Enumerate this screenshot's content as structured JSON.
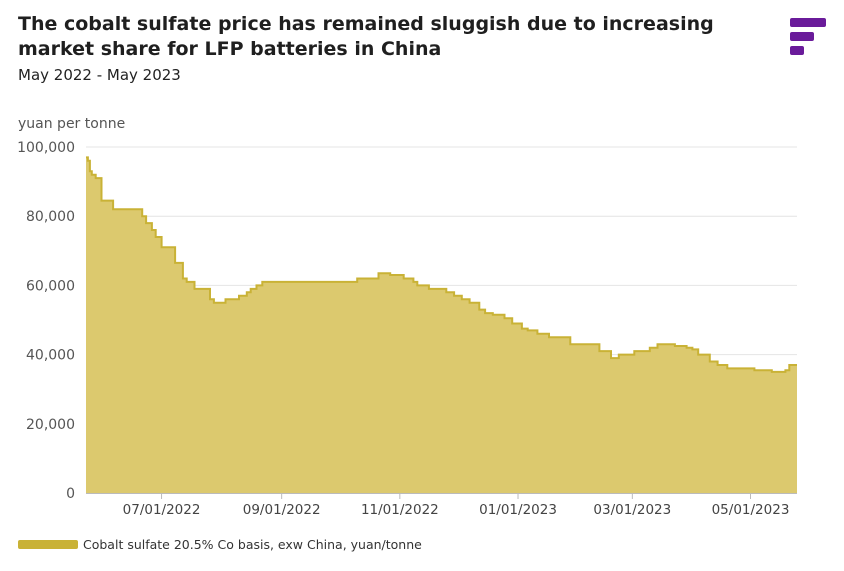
{
  "header": {
    "title": "The cobalt sulfate price has remained sluggish due to increasing market share for LFP batteries in China",
    "subtitle": "May 2022 - May 2023"
  },
  "logo": {
    "icon": "brand-logo-icon",
    "color": "#6a1b9a"
  },
  "chart_data": {
    "type": "area",
    "ylabel": "yuan per tonne",
    "ylim": [
      0,
      100000
    ],
    "yticks": [
      0,
      20000,
      40000,
      60000,
      80000,
      100000
    ],
    "ytick_labels": [
      "0",
      "20,000",
      "40,000",
      "60,000",
      "80,000",
      "100,000"
    ],
    "xlim": [
      "2022-05-23",
      "2023-05-25"
    ],
    "xticks": [
      "2022-07-01",
      "2022-09-01",
      "2022-11-01",
      "2023-01-01",
      "2023-03-01",
      "2023-05-01"
    ],
    "xtick_labels": [
      "07/01/2022",
      "09/01/2022",
      "11/01/2022",
      "01/01/2023",
      "03/01/2023",
      "05/01/2023"
    ],
    "grid": true,
    "legend_position": "bottom-left",
    "fill_color": "#dcc96e",
    "line_color": "#c9b236",
    "series": [
      {
        "name": "Cobalt sulfate 20.5% Co basis, exw China, yuan/tonne",
        "x": [
          "2022-05-23",
          "2022-05-24",
          "2022-05-25",
          "2022-05-26",
          "2022-05-28",
          "2022-05-31",
          "2022-06-03",
          "2022-06-06",
          "2022-06-09",
          "2022-06-21",
          "2022-06-23",
          "2022-06-26",
          "2022-06-28",
          "2022-07-01",
          "2022-07-04",
          "2022-07-08",
          "2022-07-12",
          "2022-07-14",
          "2022-07-18",
          "2022-07-22",
          "2022-07-26",
          "2022-07-28",
          "2022-08-03",
          "2022-08-05",
          "2022-08-10",
          "2022-08-14",
          "2022-08-16",
          "2022-08-19",
          "2022-08-22",
          "2022-08-24",
          "2022-09-25",
          "2022-09-28",
          "2022-10-10",
          "2022-10-14",
          "2022-10-17",
          "2022-10-19",
          "2022-10-21",
          "2022-10-27",
          "2022-11-03",
          "2022-11-08",
          "2022-11-10",
          "2022-11-14",
          "2022-11-16",
          "2022-11-19",
          "2022-11-21",
          "2022-11-25",
          "2022-11-29",
          "2022-12-03",
          "2022-12-07",
          "2022-12-12",
          "2022-12-15",
          "2022-12-19",
          "2022-12-25",
          "2022-12-29",
          "2023-01-03",
          "2023-01-06",
          "2023-01-11",
          "2023-01-17",
          "2023-01-28",
          "2023-02-03",
          "2023-02-08",
          "2023-02-12",
          "2023-02-14",
          "2023-02-18",
          "2023-02-22",
          "2023-03-02",
          "2023-03-10",
          "2023-03-14",
          "2023-03-18",
          "2023-03-23",
          "2023-03-26",
          "2023-03-29",
          "2023-04-01",
          "2023-04-04",
          "2023-04-10",
          "2023-04-14",
          "2023-04-19",
          "2023-04-26",
          "2023-05-03",
          "2023-05-10",
          "2023-05-12",
          "2023-05-17",
          "2023-05-19",
          "2023-05-21",
          "2023-05-25"
        ],
        "values": [
          97000,
          96000,
          93000,
          92000,
          91000,
          84500,
          84500,
          82000,
          82000,
          80000,
          78000,
          76000,
          74000,
          71000,
          71000,
          66500,
          62000,
          61000,
          59000,
          59000,
          56000,
          55000,
          56000,
          56000,
          57000,
          58000,
          59000,
          60000,
          61000,
          61000,
          61000,
          61000,
          62000,
          62000,
          62000,
          62000,
          63500,
          63000,
          62000,
          61000,
          60000,
          60000,
          59000,
          59000,
          59000,
          58000,
          57000,
          56000,
          55000,
          53000,
          52000,
          51500,
          50500,
          49000,
          47500,
          47000,
          46000,
          45000,
          43000,
          43000,
          43000,
          41000,
          41000,
          39000,
          40000,
          41000,
          42000,
          43000,
          43000,
          42500,
          42500,
          42000,
          41500,
          40000,
          38000,
          37000,
          36000,
          36000,
          35500,
          35500,
          35000,
          35000,
          35500,
          37000,
          37000
        ]
      }
    ]
  }
}
